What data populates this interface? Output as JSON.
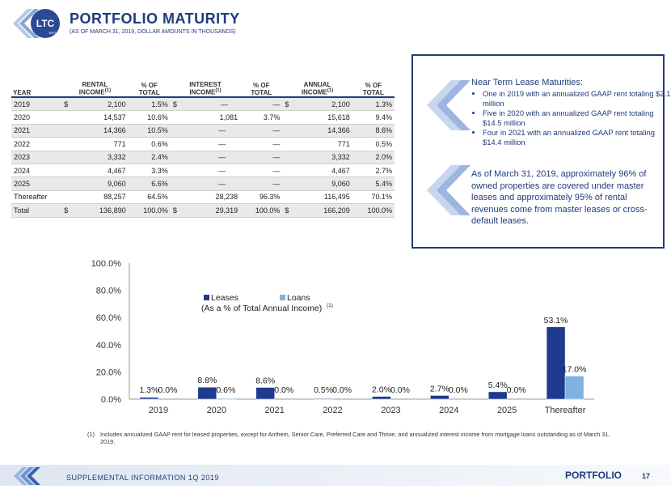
{
  "header": {
    "logo_text": "LTC",
    "logo_subtext": "REIT",
    "title": "PORTFOLIO MATURITY",
    "subtitle": "(AS OF MARCH 31, 2019, DOLLAR AMOUNTS IN THOUSANDS)"
  },
  "table": {
    "headers": {
      "year": "YEAR",
      "rental_top": "RENTAL",
      "rental_bottom": "INCOME",
      "pct": "% OF",
      "total": "TOTAL",
      "interest_top": "INTEREST",
      "interest_bottom": "INCOME",
      "annual_top": "ANNUAL",
      "annual_bottom": "INCOME",
      "footnote_ref": "(1)"
    },
    "currency": "$",
    "rows": [
      {
        "year": "2019",
        "rental": "2,100",
        "rental_pct": "1.5%",
        "interest": "—",
        "interest_pct": "—",
        "annual": "2,100",
        "annual_pct": "1.3%"
      },
      {
        "year": "2020",
        "rental": "14,537",
        "rental_pct": "10.6%",
        "interest": "1,081",
        "interest_pct": "3.7%",
        "annual": "15,618",
        "annual_pct": "9.4%"
      },
      {
        "year": "2021",
        "rental": "14,366",
        "rental_pct": "10.5%",
        "interest": "—",
        "interest_pct": "—",
        "annual": "14,366",
        "annual_pct": "8.6%"
      },
      {
        "year": "2022",
        "rental": "771",
        "rental_pct": "0.6%",
        "interest": "—",
        "interest_pct": "—",
        "annual": "771",
        "annual_pct": "0.5%"
      },
      {
        "year": "2023",
        "rental": "3,332",
        "rental_pct": "2.4%",
        "interest": "—",
        "interest_pct": "—",
        "annual": "3,332",
        "annual_pct": "2.0%"
      },
      {
        "year": "2024",
        "rental": "4,467",
        "rental_pct": "3.3%",
        "interest": "—",
        "interest_pct": "—",
        "annual": "4,467",
        "annual_pct": "2.7%"
      },
      {
        "year": "2025",
        "rental": "9,060",
        "rental_pct": "6.6%",
        "interest": "—",
        "interest_pct": "—",
        "annual": "9,060",
        "annual_pct": "5.4%"
      },
      {
        "year": "Thereafter",
        "rental": "88,257",
        "rental_pct": "64.5%",
        "interest": "28,238",
        "interest_pct": "96.3%",
        "annual": "116,495",
        "annual_pct": "70.1%"
      },
      {
        "year": "Total",
        "rental": "136,890",
        "rental_pct": "100.0%",
        "interest": "29,319",
        "interest_pct": "100.0%",
        "annual": "166,209",
        "annual_pct": "100.0%"
      }
    ]
  },
  "sidebox": {
    "near_term_title": "Near Term Lease Maturities:",
    "bullets": [
      "One in 2019 with an annualized GAAP rent totaling $2.1 million",
      "Five in 2020 with an annualized GAAP rent totaling $14.5 million",
      "Four in 2021 with an annualized GAAP rent totaling $14.4 million"
    ],
    "summary": "As of March 31, 2019, approximately 96% of owned properties are covered under master leases and approximately 95% of rental revenues come from master leases or cross-default leases."
  },
  "chart_data": {
    "type": "bar",
    "categories": [
      "2019",
      "2020",
      "2021",
      "2022",
      "2023",
      "2024",
      "2025",
      "Thereafter"
    ],
    "series": [
      {
        "name": "Leases",
        "values": [
          1.3,
          8.8,
          8.6,
          0.5,
          2.0,
          2.7,
          5.4,
          53.1
        ],
        "labels": [
          "1.3%",
          "8.8%",
          "8.6%",
          "0.5%",
          "2.0%",
          "2.7%",
          "5.4%",
          "53.1%"
        ],
        "color": "#1f3b8f"
      },
      {
        "name": "Loans",
        "values": [
          0.0,
          0.6,
          0.0,
          0.0,
          0.0,
          0.0,
          0.0,
          17.0
        ],
        "labels": [
          "0.0%",
          "0.6%",
          "0.0%",
          "0.0%",
          "0.0%",
          "0.0%",
          "0.0%",
          "17.0%"
        ],
        "color": "#7fb2e0"
      }
    ],
    "ylim": [
      0,
      100
    ],
    "yticks": [
      "0.0%",
      "20.0%",
      "40.0%",
      "60.0%",
      "80.0%",
      "100.0%"
    ],
    "legend_note": "(As a % of Total Annual Income)",
    "legend_note_ref": "(1)",
    "grid": false,
    "legend_position": "top-center"
  },
  "footnote": {
    "mark": "(1)",
    "text": "Includes annualized GAAP rent for leased properties, except for Anthem, Senior Care, Preferred Care and Thrive, and annualized interest income from mortgage loans outstanding as of March 31, 2019."
  },
  "footer": {
    "left": "SUPPLEMENTAL INFORMATION 1Q 2019",
    "right": "PORTFOLIO",
    "page": "17"
  },
  "colors": {
    "brand": "#1f3b7a",
    "leases": "#1f3b8f",
    "loans": "#7fb2e0"
  }
}
